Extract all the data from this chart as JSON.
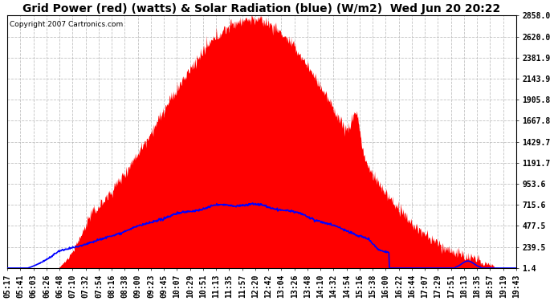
{
  "title": "Grid Power (red) (watts) & Solar Radiation (blue) (W/m2)  Wed Jun 20 20:22",
  "copyright": "Copyright 2007 Cartronics.com",
  "background_color": "#ffffff",
  "plot_bg_color": "#ffffff",
  "yticks": [
    1.4,
    239.5,
    477.5,
    715.6,
    953.6,
    1191.7,
    1429.7,
    1667.8,
    1905.8,
    2143.9,
    2381.9,
    2620.0,
    2858.0
  ],
  "ymin": 1.4,
  "ymax": 2858.0,
  "xtick_labels": [
    "05:17",
    "05:41",
    "06:03",
    "06:26",
    "06:48",
    "07:10",
    "07:32",
    "07:54",
    "08:16",
    "08:38",
    "09:00",
    "09:23",
    "09:45",
    "10:07",
    "10:29",
    "10:51",
    "11:13",
    "11:35",
    "11:57",
    "12:20",
    "12:42",
    "13:04",
    "13:26",
    "13:48",
    "14:10",
    "14:32",
    "14:54",
    "15:16",
    "15:38",
    "16:00",
    "16:22",
    "16:44",
    "17:07",
    "17:29",
    "17:51",
    "18:13",
    "18:35",
    "18:57",
    "19:19",
    "19:43"
  ],
  "n_ticks": 40,
  "grid_color": "#bbbbbb",
  "grid_linestyle": "--",
  "red_fill_color": "#ff0000",
  "blue_line_color": "#0000ff",
  "red_line_color": "#ff0000",
  "title_fontsize": 10,
  "tick_fontsize": 7,
  "copyright_fontsize": 6.5
}
